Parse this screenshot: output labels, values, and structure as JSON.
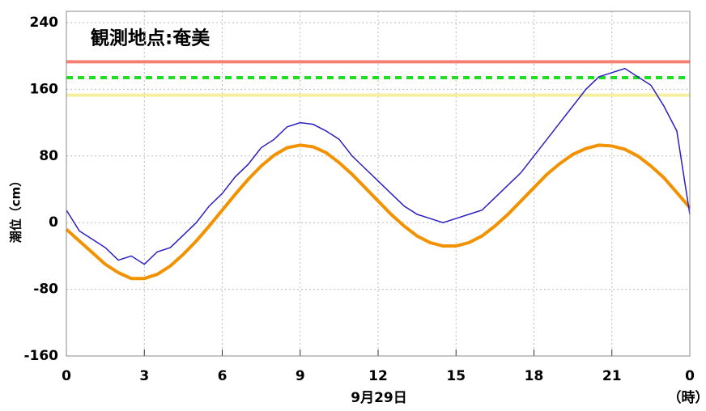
{
  "chart_data": {
    "type": "line",
    "title": "観測地点:奄美",
    "y_label": "潮位（cm）",
    "x_label": "9月29日",
    "x_unit": "（時）",
    "x": [
      0,
      0.5,
      1,
      1.5,
      2,
      2.5,
      3,
      3.5,
      4,
      4.5,
      5,
      5.5,
      6,
      6.5,
      7,
      7.5,
      8,
      8.5,
      9,
      9.5,
      10,
      10.5,
      11,
      11.5,
      12,
      12.5,
      13,
      13.5,
      14,
      14.5,
      15,
      15.5,
      16,
      16.5,
      17,
      17.5,
      18,
      18.5,
      19,
      19.5,
      20,
      20.5,
      21,
      21.5,
      22,
      22.5,
      23,
      23.5,
      24
    ],
    "series": [
      {
        "color": "#f39200",
        "width": 4,
        "values": [
          -8,
          -22,
          -36,
          -50,
          -60,
          -67,
          -67,
          -62,
          -52,
          -38,
          -22,
          -4,
          15,
          34,
          52,
          68,
          81,
          90,
          93,
          91,
          84,
          72,
          58,
          42,
          26,
          10,
          -4,
          -16,
          -24,
          -28,
          -28,
          -24,
          -16,
          -4,
          10,
          26,
          42,
          58,
          71,
          82,
          89,
          93,
          92,
          88,
          80,
          68,
          54,
          36,
          18
        ]
      },
      {
        "color": "#2a1fc0",
        "width": 1.5,
        "values": [
          15,
          -10,
          -20,
          -30,
          -45,
          -40,
          -50,
          -35,
          -30,
          -15,
          0,
          20,
          35,
          55,
          70,
          90,
          100,
          115,
          120,
          118,
          110,
          100,
          80,
          65,
          50,
          35,
          20,
          10,
          5,
          0,
          5,
          10,
          15,
          30,
          45,
          60,
          80,
          100,
          120,
          140,
          160,
          175,
          180,
          185,
          175,
          165,
          140,
          110,
          10
        ]
      }
    ],
    "hlines": [
      {
        "value": 193,
        "color": "#f47f72",
        "dashed": false
      },
      {
        "value": 174,
        "color": "#22dd22",
        "dashed": true
      },
      {
        "value": 153,
        "color": "#f4f0a0",
        "dashed": false
      }
    ],
    "xlim": [
      0,
      24
    ],
    "xticks": [
      0,
      3,
      6,
      9,
      12,
      15,
      18,
      21,
      {
        "value": 24,
        "label": "0"
      }
    ],
    "ylim": [
      -160,
      240
    ],
    "yticks": [
      -160,
      -80,
      0,
      80,
      160,
      240
    ],
    "grid": true
  }
}
